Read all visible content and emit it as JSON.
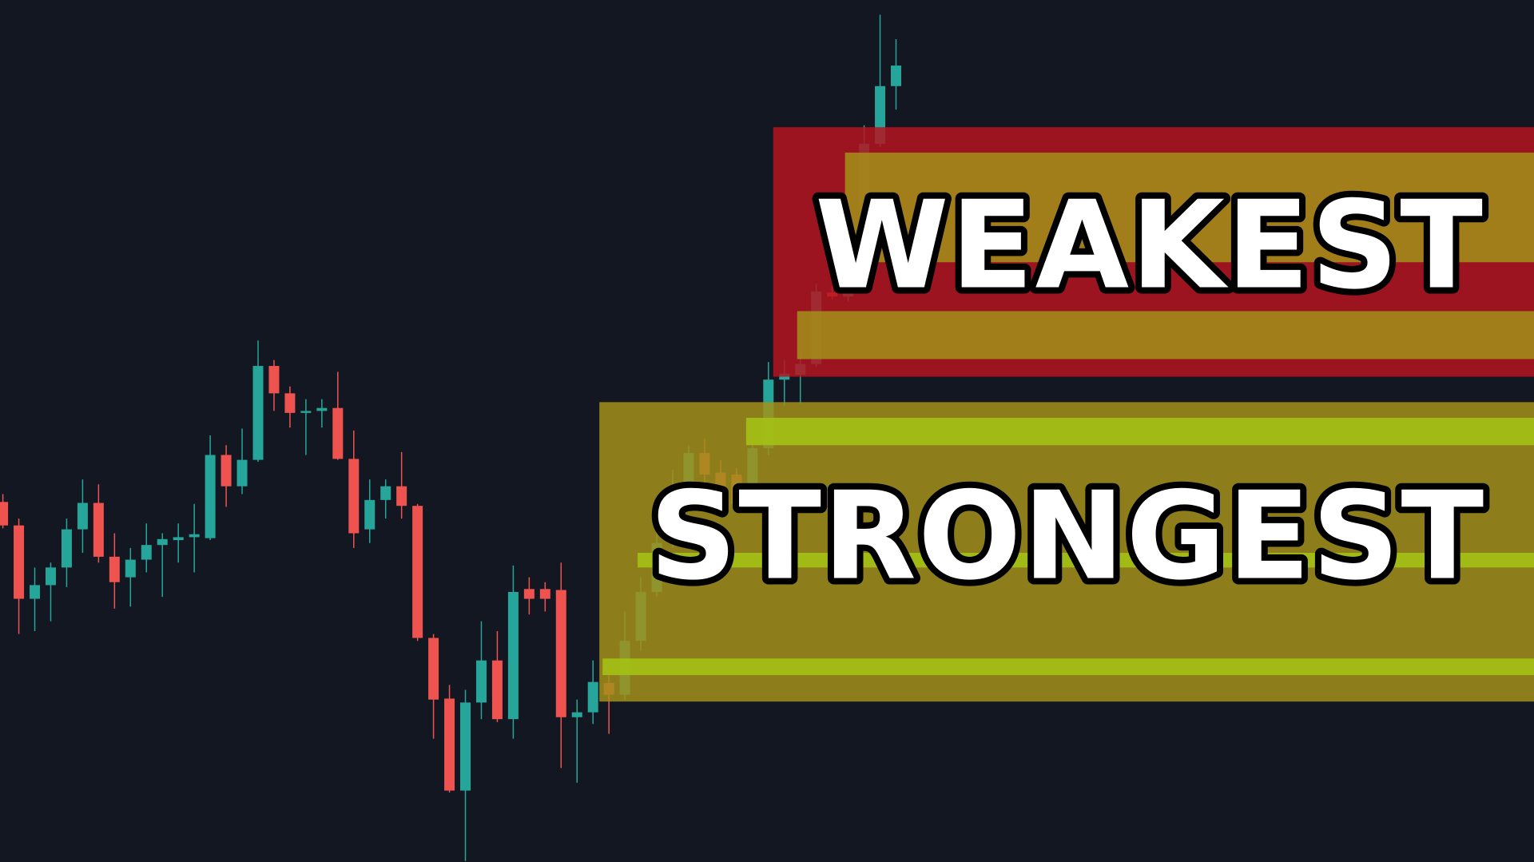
{
  "chart_data": {
    "type": "candlestick",
    "up_color": "#26a69a",
    "down_color": "#ef5350",
    "xlim": [
      -0.18,
      96
    ],
    "ylim": [
      0,
      881
    ],
    "open": [
      368,
      344,
      269,
      283,
      301,
      340,
      367,
      312,
      291,
      309,
      324,
      329,
      332,
      331,
      416,
      384,
      411,
      507,
      479,
      459,
      461,
      464,
      412,
      340,
      370,
      384,
      364,
      229,
      167,
      73,
      163,
      206,
      146,
      279,
      279,
      278,
      148,
      153,
      183,
      171,
      226,
      276,
      326,
      383,
      418,
      398,
      396,
      366,
      423,
      493,
      498,
      509,
      582,
      578,
      616,
      734,
      793
    ],
    "high": [
      376,
      351,
      301,
      306,
      351,
      391,
      386,
      336,
      321,
      346,
      336,
      346,
      366,
      436,
      426,
      443,
      533,
      513,
      486,
      473,
      473,
      501,
      441,
      391,
      391,
      419,
      366,
      233,
      181,
      176,
      246,
      236,
      303,
      291,
      286,
      306,
      166,
      206,
      191,
      256,
      291,
      336,
      401,
      426,
      433,
      411,
      403,
      433,
      511,
      513,
      521,
      591,
      589,
      631,
      753,
      866,
      841
    ],
    "low": [
      341,
      233,
      236,
      246,
      281,
      316,
      306,
      259,
      261,
      296,
      271,
      306,
      296,
      329,
      363,
      376,
      409,
      461,
      444,
      416,
      444,
      411,
      321,
      326,
      351,
      351,
      226,
      126,
      71,
      1,
      146,
      143,
      126,
      253,
      256,
      96,
      81,
      141,
      131,
      166,
      216,
      271,
      321,
      361,
      371,
      361,
      361,
      361,
      416,
      466,
      469,
      506,
      575,
      573,
      613,
      731,
      769
    ],
    "close": [
      344,
      269,
      283,
      301,
      340,
      367,
      312,
      286,
      309,
      324,
      330,
      332,
      335,
      416,
      384,
      411,
      507,
      479,
      459,
      461,
      464,
      412,
      336,
      370,
      384,
      364,
      229,
      166,
      73,
      163,
      206,
      146,
      276,
      269,
      269,
      148,
      153,
      184,
      171,
      226,
      276,
      326,
      383,
      418,
      396,
      371,
      366,
      423,
      493,
      499,
      509,
      583,
      578,
      616,
      734,
      793,
      814
    ],
    "zones": [
      {
        "x_start": 48.3,
        "top": 751,
        "bottom": 496,
        "color": "#b5141f"
      },
      {
        "x_start": 52.8,
        "top": 725,
        "bottom": 613,
        "color": "#a3911a"
      },
      {
        "x_start": 49.8,
        "top": 563,
        "bottom": 514,
        "color": "#a3911a"
      },
      {
        "x_start": 37.4,
        "top": 470,
        "bottom": 164,
        "color": "#a3911a"
      },
      {
        "x_start": 46.6,
        "top": 454,
        "bottom": 426,
        "color": "#a6c414"
      },
      {
        "x_start": 39.8,
        "top": 316,
        "bottom": 301,
        "color": "#a6c414"
      },
      {
        "x_start": 37.6,
        "top": 208,
        "bottom": 191,
        "color": "#a6c414"
      }
    ],
    "annotations": [
      "WEAKEST",
      "STRONGEST"
    ]
  }
}
